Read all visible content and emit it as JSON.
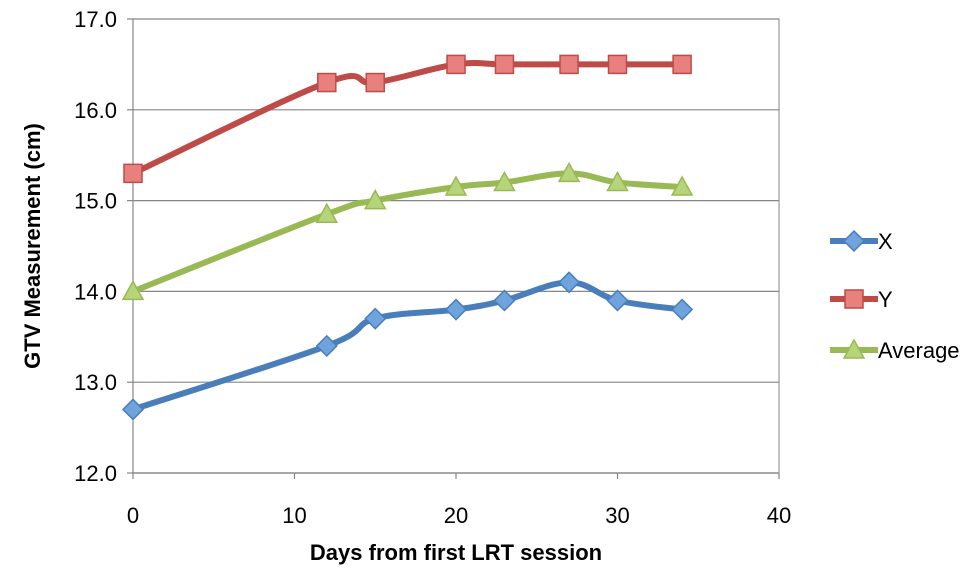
{
  "chart_data": {
    "type": "line",
    "title": "",
    "xlabel": "Days from first LRT session",
    "ylabel": "GTV Measurement (cm)",
    "xlim": [
      0,
      40
    ],
    "ylim": [
      12.0,
      17.0
    ],
    "x_ticks": [
      "0",
      "10",
      "20",
      "30",
      "40"
    ],
    "y_ticks": [
      "12.0",
      "13.0",
      "14.0",
      "15.0",
      "16.0",
      "17.0"
    ],
    "grid": "horizontal",
    "legend_position": "right",
    "x": [
      0,
      12,
      15,
      20,
      23,
      27,
      30,
      34
    ],
    "series": [
      {
        "name": "X",
        "values": [
          12.7,
          13.4,
          13.7,
          13.8,
          13.9,
          14.1,
          13.9,
          13.8
        ],
        "color": "#4A7EBB",
        "marker": "diamond",
        "marker_fill": "#6FA3DE"
      },
      {
        "name": "Y",
        "values": [
          15.3,
          16.3,
          16.3,
          16.5,
          16.5,
          16.5,
          16.5,
          16.5
        ],
        "color": "#BE4B48",
        "marker": "square",
        "marker_fill": "#E8807E"
      },
      {
        "name": "Average",
        "values": [
          14.0,
          14.85,
          15.0,
          15.15,
          15.2,
          15.3,
          15.2,
          15.15
        ],
        "color": "#98B954",
        "marker": "triangle",
        "marker_fill": "#B6D47A"
      }
    ]
  }
}
